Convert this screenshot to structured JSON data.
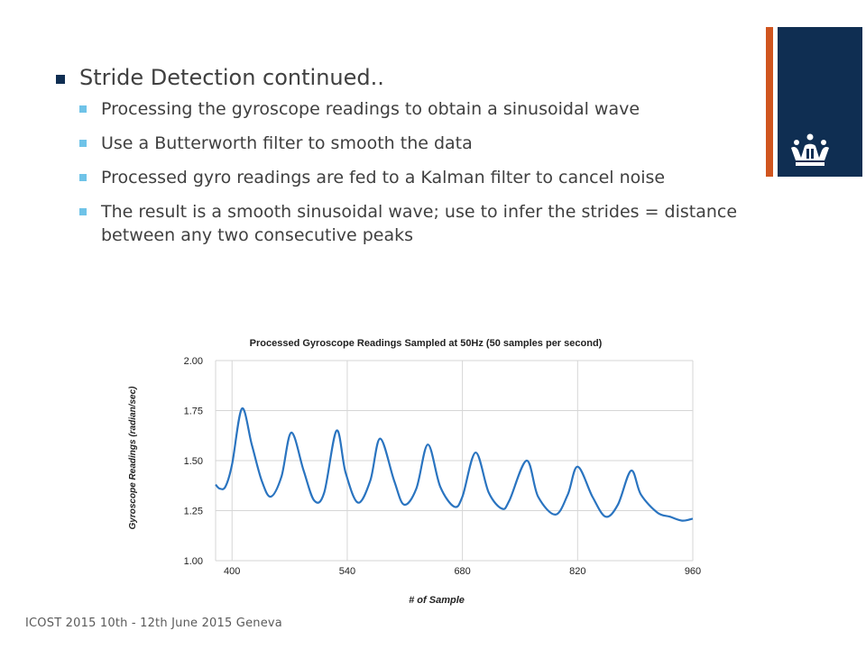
{
  "slide": {
    "title": "Stride Detection continued..",
    "bullets": [
      "Processing the gyroscope readings to obtain a sinusoidal wave",
      "Use a Butterworth filter to smooth the data",
      "Processed gyro readings are fed to a Kalman filter to cancel noise",
      "The result is a smooth sinusoidal wave; use to infer the strides = distance between any two consecutive peaks"
    ],
    "footer": "ICOST 2015 10th - 12th June 2015 Geneva"
  },
  "colors": {
    "accent_orange": "#d0551f",
    "brand_navy": "#0f2e52",
    "sub_bullet": "#6fc3e8",
    "series_line": "#2a74c0"
  },
  "icons": [
    "crown-logo"
  ],
  "chart_data": {
    "type": "line",
    "title": "Processed Gyroscope Readings Sampled at 50Hz (50 samples per second)",
    "xlabel": "# of Sample",
    "ylabel": "Gyroscope Readings (radian/sec)",
    "xlim": [
      380,
      960
    ],
    "ylim": [
      1.0,
      2.0
    ],
    "x_ticks": [
      "400",
      "540",
      "680",
      "820",
      "960"
    ],
    "y_ticks": [
      "2.00",
      "1.75",
      "1.50",
      "1.25",
      "1.00"
    ],
    "grid": true,
    "series": [
      {
        "x": [
          380,
          385,
          392,
          400,
          412,
          424,
          436,
          447,
          460,
          472,
          487,
          500,
          512,
          527,
          538,
          553,
          568,
          580,
          597,
          609,
          624,
          638,
          653,
          670,
          680,
          696,
          712,
          728,
          737,
          758,
          772,
          793,
          808,
          820,
          838,
          854,
          869,
          885,
          897,
          917,
          932,
          947,
          960
        ],
        "values": [
          1.38,
          1.36,
          1.37,
          1.48,
          1.76,
          1.58,
          1.4,
          1.32,
          1.42,
          1.64,
          1.45,
          1.3,
          1.34,
          1.65,
          1.44,
          1.29,
          1.4,
          1.61,
          1.4,
          1.28,
          1.36,
          1.58,
          1.37,
          1.27,
          1.32,
          1.54,
          1.34,
          1.26,
          1.3,
          1.5,
          1.32,
          1.23,
          1.33,
          1.47,
          1.32,
          1.22,
          1.28,
          1.45,
          1.33,
          1.24,
          1.22,
          1.2,
          1.21
        ]
      }
    ]
  }
}
